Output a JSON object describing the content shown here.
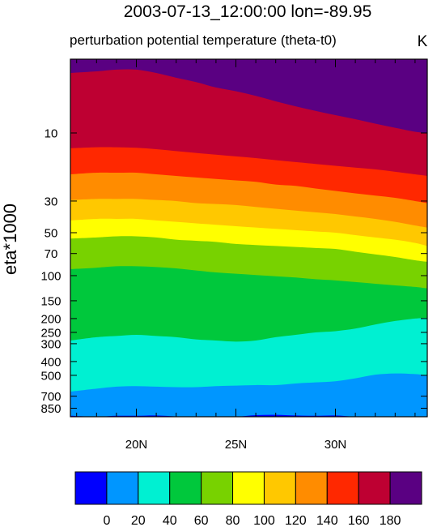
{
  "chart_data": {
    "type": "filled-contour",
    "title": "2003-07-13_12:00:00  lon=-89.95",
    "subtitle": "perturbation potential temperature (theta-t0)",
    "units": "K",
    "ylabel": "eta*1000",
    "xlabel": "",
    "x_range": [
      16.9,
      34.6
    ],
    "x_ticks": [
      {
        "value": 20,
        "label": "20N"
      },
      {
        "value": 25,
        "label": "25N"
      },
      {
        "value": 30,
        "label": "30N"
      }
    ],
    "y_scale": "log",
    "y_direction": "descending-down",
    "y_range": [
      2.5,
      1000
    ],
    "y_ticks": [
      {
        "value": 10,
        "label": "10"
      },
      {
        "value": 30,
        "label": "30"
      },
      {
        "value": 50,
        "label": "50"
      },
      {
        "value": 70,
        "label": "70"
      },
      {
        "value": 100,
        "label": "100"
      },
      {
        "value": 150,
        "label": "150"
      },
      {
        "value": 200,
        "label": "200"
      },
      {
        "value": 250,
        "label": "250"
      },
      {
        "value": 300,
        "label": "300"
      },
      {
        "value": 400,
        "label": "400"
      },
      {
        "value": 500,
        "label": "500"
      },
      {
        "value": 700,
        "label": "700"
      },
      {
        "value": 850,
        "label": "850"
      }
    ],
    "levels": [
      0,
      20,
      40,
      60,
      80,
      100,
      120,
      140,
      160,
      180
    ],
    "level_labels": [
      "0",
      "20",
      "40",
      "60",
      "80",
      "100",
      "120",
      "140",
      "160",
      "180"
    ],
    "colors": [
      "#0000ff",
      "#0096ff",
      "#00f0d2",
      "#00c83c",
      "#78d200",
      "#ffff00",
      "#ffc800",
      "#ff8c00",
      "#ff2800",
      "#be0032",
      "#5a0082"
    ],
    "contour_x": [
      16.9,
      18,
      19,
      20,
      21,
      22,
      23,
      24,
      25,
      26,
      27,
      28,
      29,
      30,
      31,
      32,
      33,
      34,
      34.6
    ],
    "contours": [
      {
        "level": 0,
        "eta": [
          960,
          975,
          960,
          960,
          955,
          970,
          990,
          990,
          980,
          950,
          945,
          955,
          960,
          955,
          975,
          990,
          990,
          990,
          990
        ]
      },
      {
        "level": 20,
        "eta": [
          650,
          620,
          600,
          595,
          600,
          605,
          605,
          595,
          590,
          585,
          585,
          570,
          560,
          550,
          525,
          495,
          485,
          490,
          500
        ]
      },
      {
        "level": 40,
        "eta": [
          285,
          270,
          265,
          260,
          265,
          270,
          280,
          285,
          290,
          285,
          270,
          260,
          250,
          245,
          235,
          220,
          208,
          200,
          198
        ]
      },
      {
        "level": 60,
        "eta": [
          90,
          88,
          86,
          86,
          87,
          89,
          92,
          95,
          97,
          99,
          101,
          103,
          106,
          108,
          111,
          114,
          117,
          120,
          123
        ]
      },
      {
        "level": 80,
        "eta": [
          55,
          54,
          53,
          53,
          54,
          56,
          57,
          58,
          60,
          61,
          62,
          63,
          64,
          65,
          68,
          71,
          74,
          78,
          80
        ]
      },
      {
        "level": 100,
        "eta": [
          41,
          40,
          40,
          40,
          41,
          42,
          43,
          44,
          45,
          46,
          47,
          48,
          49,
          50,
          52,
          54,
          56,
          59,
          62
        ]
      },
      {
        "level": 120,
        "eta": [
          29.5,
          29,
          29,
          29,
          29.5,
          30,
          31,
          31.5,
          32,
          33,
          34,
          35,
          36,
          37,
          38.5,
          40,
          42,
          44.5,
          46
        ]
      },
      {
        "level": 140,
        "eta": [
          19.5,
          19,
          19,
          19,
          19.5,
          20,
          20.5,
          21,
          21.5,
          22,
          23,
          23.5,
          24.5,
          25.5,
          26.5,
          27.5,
          28.5,
          30,
          31
        ]
      },
      {
        "level": 160,
        "eta": [
          12.8,
          12.6,
          12.6,
          12.7,
          13,
          13.4,
          13.8,
          14.2,
          14.6,
          15,
          15.5,
          16,
          16.5,
          17,
          17.5,
          18,
          18.7,
          19.5,
          20
        ]
      },
      {
        "level": 180,
        "eta": [
          3.8,
          3.7,
          3.6,
          3.6,
          3.8,
          4.1,
          4.4,
          4.8,
          5.1,
          5.5,
          6,
          6.5,
          7,
          7.5,
          8,
          8.6,
          9.2,
          9.8,
          10
        ]
      }
    ]
  }
}
